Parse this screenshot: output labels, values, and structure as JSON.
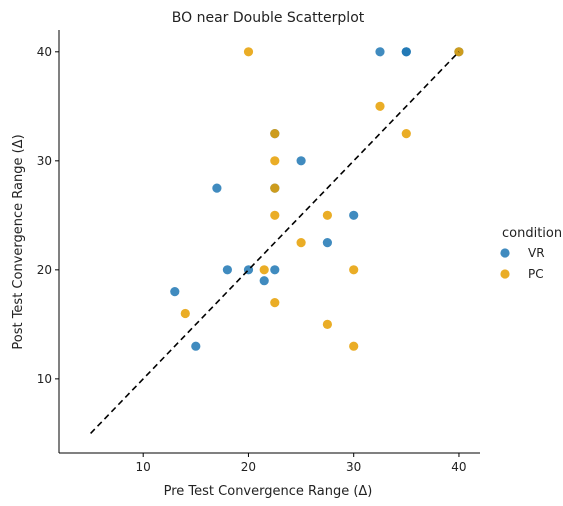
{
  "chart_data": {
    "type": "scatter",
    "title": "BO near Double Scatterplot",
    "xlabel": "Pre Test Convergence Range (Δ)",
    "ylabel": "Post Test Convergence Range (Δ)",
    "xlim": [
      2,
      42
    ],
    "ylim": [
      3.2,
      42
    ],
    "xticks": [
      10,
      20,
      30,
      40
    ],
    "yticks": [
      10,
      20,
      30,
      40
    ],
    "grid": false,
    "legend": {
      "title": "condition",
      "placement": "right"
    },
    "reference_line": {
      "style": "dashed",
      "color": "#000000",
      "from": [
        5,
        5
      ],
      "to": [
        40,
        40
      ]
    },
    "series": [
      {
        "name": "VR",
        "color": "#1f77b4",
        "points": [
          [
            13,
            18
          ],
          [
            15,
            13
          ],
          [
            17,
            27.5
          ],
          [
            18,
            20
          ],
          [
            20,
            20
          ],
          [
            21.5,
            19
          ],
          [
            22.5,
            20
          ],
          [
            22.5,
            27.5
          ],
          [
            22.5,
            32.5
          ],
          [
            25,
            30
          ],
          [
            27.5,
            22.5
          ],
          [
            30,
            25
          ],
          [
            32.5,
            40
          ],
          [
            35,
            40
          ],
          [
            35,
            40
          ],
          [
            40,
            40
          ]
        ]
      },
      {
        "name": "PC",
        "color": "#e69f00",
        "points": [
          [
            14,
            16
          ],
          [
            20,
            40
          ],
          [
            21.5,
            20
          ],
          [
            22.5,
            17
          ],
          [
            22.5,
            25
          ],
          [
            22.5,
            27.5
          ],
          [
            22.5,
            30
          ],
          [
            22.5,
            32.5
          ],
          [
            25,
            22.5
          ],
          [
            27.5,
            25
          ],
          [
            27.5,
            15
          ],
          [
            30,
            20
          ],
          [
            30,
            13
          ],
          [
            32.5,
            35
          ],
          [
            35,
            32.5
          ],
          [
            40,
            40
          ]
        ]
      }
    ]
  }
}
